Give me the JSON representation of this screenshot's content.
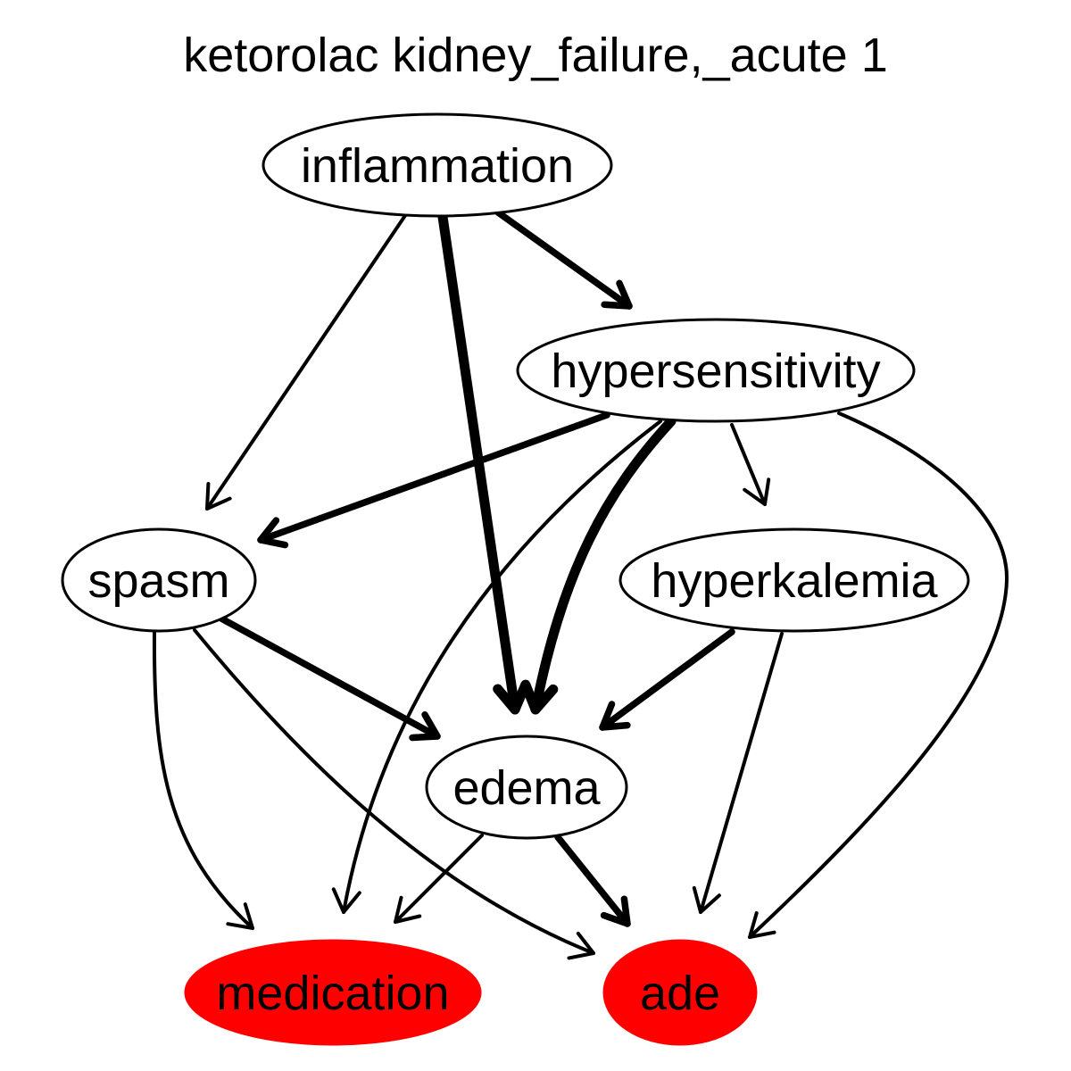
{
  "title": "ketorolac kidney_failure,_acute 1",
  "colors": {
    "highlight": "#ff0000",
    "default_fill": "#ffffff",
    "stroke": "#000000"
  },
  "nodes": [
    {
      "id": "inflammation",
      "label": "inflammation",
      "highlight": false
    },
    {
      "id": "hypersensitivity",
      "label": "hypersensitivity",
      "highlight": false
    },
    {
      "id": "spasm",
      "label": "spasm",
      "highlight": false
    },
    {
      "id": "hyperkalemia",
      "label": "hyperkalemia",
      "highlight": false
    },
    {
      "id": "edema",
      "label": "edema",
      "highlight": false
    },
    {
      "id": "medication",
      "label": "medication",
      "highlight": true
    },
    {
      "id": "ade",
      "label": "ade",
      "highlight": true
    }
  ],
  "edges": [
    {
      "from": "inflammation",
      "to": "spasm",
      "weight": 1
    },
    {
      "from": "inflammation",
      "to": "edema",
      "weight": 3
    },
    {
      "from": "inflammation",
      "to": "hypersensitivity",
      "weight": 2
    },
    {
      "from": "hypersensitivity",
      "to": "spasm",
      "weight": 2
    },
    {
      "from": "hypersensitivity",
      "to": "medication",
      "weight": 1
    },
    {
      "from": "hypersensitivity",
      "to": "edema",
      "weight": 3
    },
    {
      "from": "hypersensitivity",
      "to": "hyperkalemia",
      "weight": 1
    },
    {
      "from": "hypersensitivity",
      "to": "ade",
      "weight": 1
    },
    {
      "from": "spasm",
      "to": "medication",
      "weight": 1
    },
    {
      "from": "spasm",
      "to": "ade",
      "weight": 1
    },
    {
      "from": "spasm",
      "to": "edema",
      "weight": 2
    },
    {
      "from": "hyperkalemia",
      "to": "edema",
      "weight": 2
    },
    {
      "from": "hyperkalemia",
      "to": "ade",
      "weight": 1
    },
    {
      "from": "edema",
      "to": "medication",
      "weight": 1
    },
    {
      "from": "edema",
      "to": "ade",
      "weight": 2
    }
  ]
}
